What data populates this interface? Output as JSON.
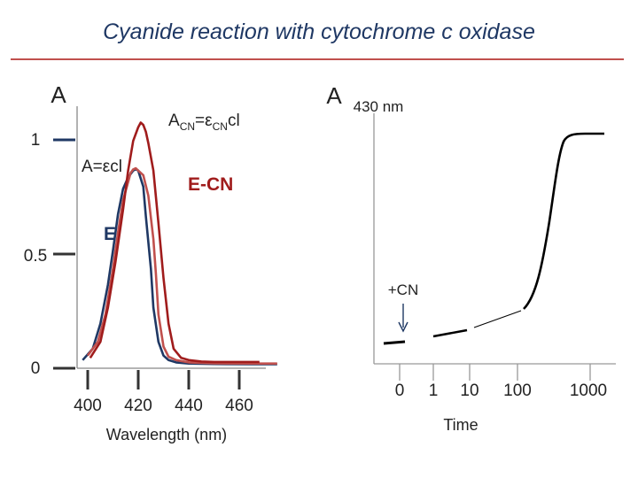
{
  "title": "Cyanide reaction with cytochrome c oxidase",
  "colors": {
    "title": "#1f3864",
    "rule": "#c0504d",
    "navy": "#1f3864",
    "red": "#c0504d",
    "dark_red": "#a01c1c"
  },
  "chart_data": [
    {
      "type": "line",
      "ylabel": "A",
      "xlabel": "Wavelength (nm)",
      "xlim": [
        388,
        475
      ],
      "ylim": [
        0,
        1.1
      ],
      "x_ticks": [
        "400",
        "420",
        "440",
        "460"
      ],
      "y_ticks": [
        "0",
        "0.5",
        "1"
      ],
      "annotations": [
        {
          "text": "A=εcl"
        },
        {
          "base": "A",
          "sub": "CN",
          "mid": "=ε",
          "sub2": "CN",
          "tail": "cl"
        },
        {
          "text": "E-CN"
        },
        {
          "text": "E"
        }
      ],
      "series": [
        {
          "color": "#1f3864",
          "x": [
            398,
            402,
            405,
            408,
            410,
            412,
            414,
            416,
            418,
            419,
            420,
            422,
            423,
            425,
            426,
            428,
            430,
            432,
            435,
            440,
            450,
            465,
            475
          ],
          "y": [
            0.02,
            0.07,
            0.18,
            0.35,
            0.5,
            0.66,
            0.77,
            0.82,
            0.85,
            0.856,
            0.85,
            0.78,
            0.65,
            0.42,
            0.25,
            0.1,
            0.04,
            0.02,
            0.01,
            0.005,
            0.003,
            0.002,
            0.002
          ]
        },
        {
          "color": "#c0504d",
          "x": [
            400,
            404,
            407,
            410,
            412,
            414,
            416,
            417,
            418,
            419,
            420,
            422,
            424,
            426,
            427,
            428,
            430,
            432,
            435,
            440,
            450,
            465,
            475
          ],
          "y": [
            0.04,
            0.1,
            0.22,
            0.42,
            0.58,
            0.72,
            0.8,
            0.84,
            0.855,
            0.86,
            0.85,
            0.83,
            0.74,
            0.55,
            0.4,
            0.22,
            0.08,
            0.035,
            0.02,
            0.01,
            0.006,
            0.005,
            0.005
          ]
        },
        {
          "color": "#a01c1c",
          "x": [
            401,
            405,
            408,
            411,
            414,
            416,
            418,
            420,
            421,
            422,
            423,
            424,
            426,
            428,
            430,
            432,
            434,
            437,
            440,
            445,
            450,
            460,
            468
          ],
          "y": [
            0.03,
            0.1,
            0.25,
            0.45,
            0.68,
            0.85,
            0.98,
            1.04,
            1.06,
            1.05,
            1.02,
            0.97,
            0.85,
            0.62,
            0.38,
            0.18,
            0.07,
            0.03,
            0.02,
            0.014,
            0.012,
            0.012,
            0.012
          ]
        }
      ]
    },
    {
      "type": "line",
      "ylabel": "A",
      "ylabel_sub": "430 nm",
      "xlabel": "Time",
      "x_scale": "log",
      "x_ticks": [
        "0",
        "1",
        "10",
        "100",
        "1000"
      ],
      "annotations": [
        {
          "text": "+CN"
        }
      ],
      "series": [
        {
          "color": "#000000",
          "points": [
            [
              0,
              0.0
            ],
            [
              1,
              0.03
            ],
            [
              10,
              0.1
            ],
            [
              100,
              0.22
            ],
            [
              180,
              0.45
            ],
            [
              250,
              0.78
            ],
            [
              380,
              1.0
            ],
            [
              1000,
              1.0
            ]
          ]
        }
      ]
    }
  ]
}
